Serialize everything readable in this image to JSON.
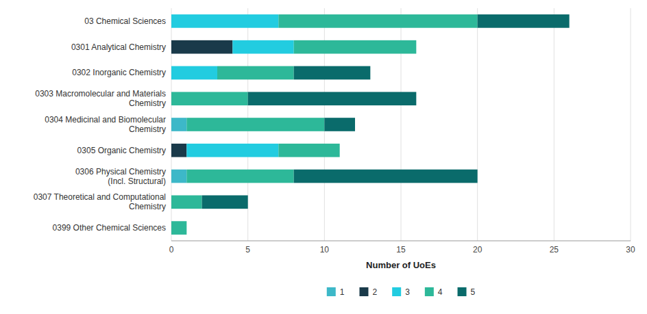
{
  "chart_data": {
    "type": "bar",
    "orientation": "horizontal",
    "stacked": true,
    "categories": [
      "03 Chemical Sciences",
      "0301 Analytical Chemistry",
      "0302 Inorganic Chemistry",
      "0303 Macromolecular and Materials\nChemistry",
      "0304 Medicinal and Biomolecular\nChemistry",
      "0305 Organic Chemistry",
      "0306 Physical Chemistry\n(Incl. Structural)",
      "0307 Theoretical and Computational\nChemistry",
      "0399 Other Chemical Sciences"
    ],
    "series": [
      {
        "name": "1",
        "color": "#3db8c8",
        "values": [
          0,
          0,
          0,
          0,
          1,
          0,
          1,
          0,
          0
        ]
      },
      {
        "name": "2",
        "color": "#1a3a4a",
        "values": [
          0,
          4,
          0,
          0,
          0,
          1,
          0,
          0,
          0
        ]
      },
      {
        "name": "3",
        "color": "#22cce0",
        "values": [
          7,
          4,
          3,
          0,
          0,
          6,
          0,
          0,
          0
        ]
      },
      {
        "name": "4",
        "color": "#2db899",
        "values": [
          13,
          8,
          5,
          5,
          9,
          4,
          7,
          2,
          1
        ]
      },
      {
        "name": "5",
        "color": "#0a6b6b",
        "values": [
          6,
          0,
          5,
          11,
          2,
          0,
          12,
          3,
          0
        ]
      }
    ],
    "x_label": "Number of UoEs",
    "xlim": [
      0,
      30
    ],
    "xticks": [
      0,
      5,
      10,
      15,
      20,
      25,
      30
    ],
    "grid": true,
    "legend": "bottom"
  }
}
